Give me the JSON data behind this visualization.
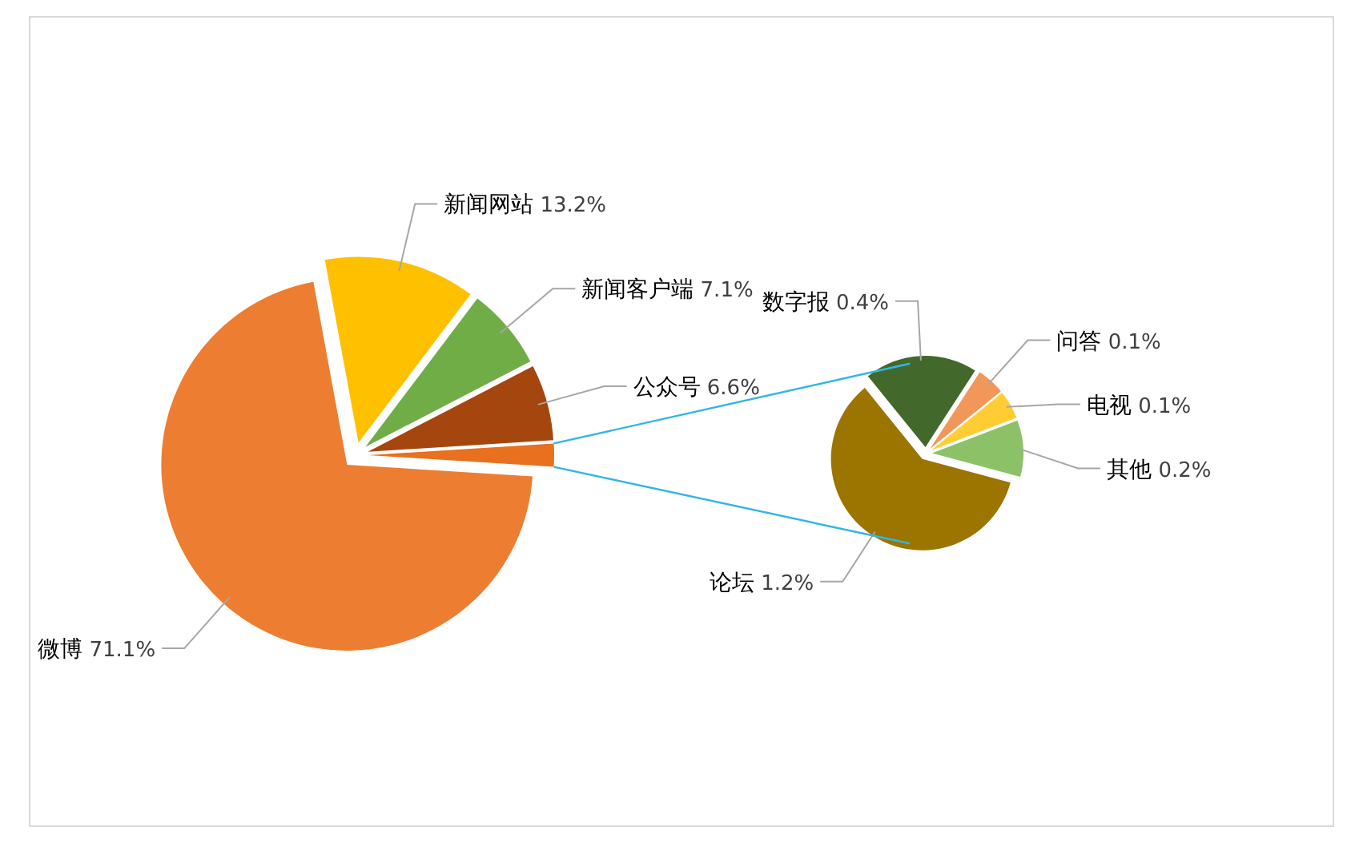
{
  "chart_data": [
    {
      "type": "pie",
      "categories": [
        "微博",
        "新闻网站",
        "新闻客户端",
        "公众号",
        null
      ],
      "values": [
        71.1,
        13.2,
        7.1,
        6.6,
        2.0
      ],
      "colors": [
        "#ed7d31",
        "#ffc000",
        "#70ad47",
        "#a5460f",
        "#e8701f"
      ],
      "value_labels": [
        "71.1%",
        "13.2%",
        "7.1%",
        "6.6%",
        null
      ]
    },
    {
      "type": "pie",
      "categories": [
        "论坛",
        "数字报",
        "问答",
        "电视",
        "其他"
      ],
      "values": [
        1.2,
        0.4,
        0.1,
        0.1,
        0.2
      ],
      "colors": [
        "#9c7400",
        "#43682b",
        "#f1975a",
        "#ffcd33",
        "#8cc168"
      ],
      "value_labels": [
        "1.2%",
        "0.4%",
        "0.1%",
        "0.1%",
        "0.2%"
      ]
    }
  ]
}
